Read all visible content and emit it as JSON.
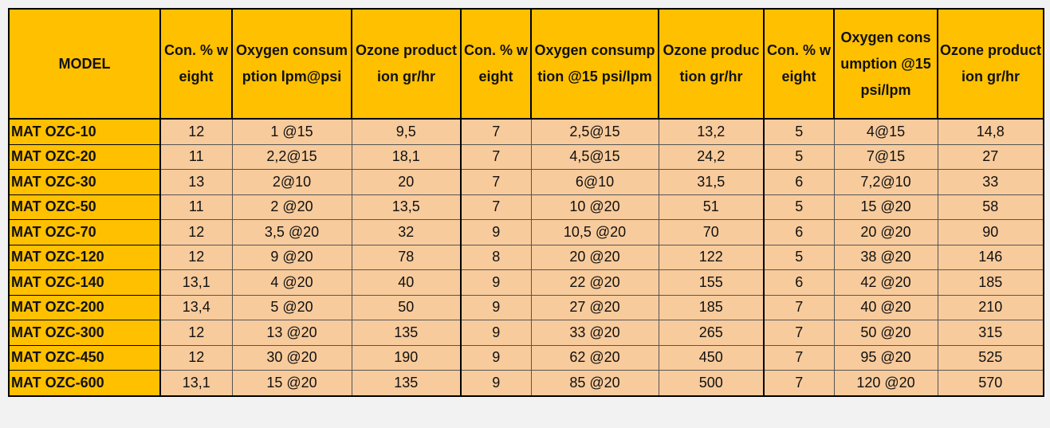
{
  "table": {
    "header": [
      "MODEL",
      "Con. % weight",
      "Oxygen consumption lpm@psi",
      "Ozone production gr/hr",
      "Con. % weight",
      "Oxygen consumption @15 psi/lpm",
      "Ozone production gr/hr",
      "Con. % weight",
      "Oxygen consumption @15 psi/lpm",
      "Ozone production gr/hr"
    ],
    "rows": [
      [
        "MAT OZC-10",
        "12",
        "1 @15",
        "9,5",
        "7",
        "2,5@15",
        "13,2",
        "5",
        "4@15",
        "14,8"
      ],
      [
        "MAT OZC-20",
        "11",
        "2,2@15",
        "18,1",
        "7",
        "4,5@15",
        "24,2",
        "5",
        "7@15",
        "27"
      ],
      [
        "MAT OZC-30",
        "13",
        "2@10",
        "20",
        "7",
        "6@10",
        "31,5",
        "6",
        "7,2@10",
        "33"
      ],
      [
        "MAT OZC-50",
        "11",
        "2 @20",
        "13,5",
        "7",
        "10 @20",
        "51",
        "5",
        "15 @20",
        "58"
      ],
      [
        "MAT OZC-70",
        "12",
        "3,5 @20",
        "32",
        "9",
        "10,5 @20",
        "70",
        "6",
        "20 @20",
        "90"
      ],
      [
        "MAT OZC-120",
        "12",
        "9 @20",
        "78",
        "8",
        "20 @20",
        "122",
        "5",
        "38 @20",
        "146"
      ],
      [
        "MAT OZC-140",
        "13,1",
        "4 @20",
        "40",
        "9",
        "22 @20",
        "155",
        "6",
        "42 @20",
        "185"
      ],
      [
        "MAT OZC-200",
        "13,4",
        "5 @20",
        "50",
        "9",
        "27 @20",
        "185",
        "7",
        "40 @20",
        "210"
      ],
      [
        "MAT OZC-300",
        "12",
        "13 @20",
        "135",
        "9",
        "33 @20",
        "265",
        "7",
        "50 @20",
        "315"
      ],
      [
        "MAT OZC-450",
        "12",
        "30 @20",
        "190",
        "9",
        "62 @20",
        "450",
        "7",
        "95 @20",
        "525"
      ],
      [
        "MAT OZC-600",
        "13,1",
        "15 @20",
        "135",
        "9",
        "85 @20",
        "500",
        "7",
        "120 @20",
        "570"
      ]
    ]
  }
}
